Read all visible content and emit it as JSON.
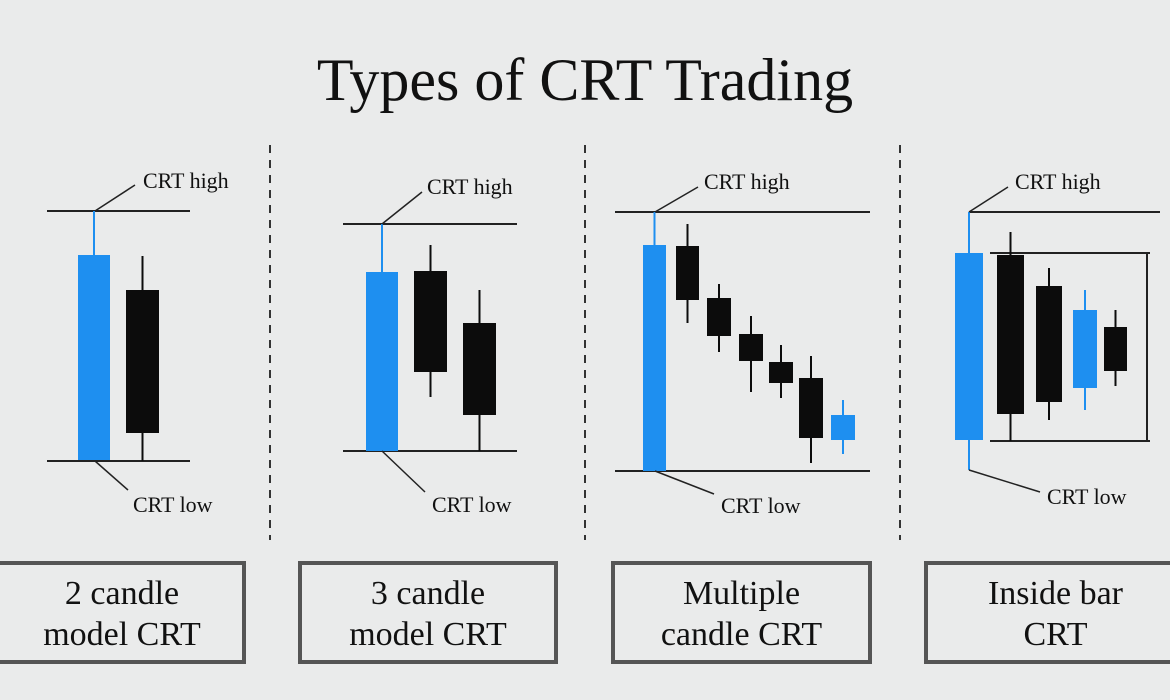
{
  "title": "Types of CRT Trading",
  "panels": [
    {
      "high_label": "CRT high",
      "low_label": "CRT low",
      "caption": [
        "2 candle",
        "model CRT"
      ]
    },
    {
      "high_label": "CRT high",
      "low_label": "CRT low",
      "caption": [
        "3 candle",
        "model CRT"
      ]
    },
    {
      "high_label": "CRT high",
      "low_label": "CRT low",
      "caption": [
        "Multiple",
        "candle CRT"
      ]
    },
    {
      "high_label": "CRT high",
      "low_label": "CRT low",
      "caption": [
        "Inside bar",
        "CRT"
      ]
    }
  ]
}
